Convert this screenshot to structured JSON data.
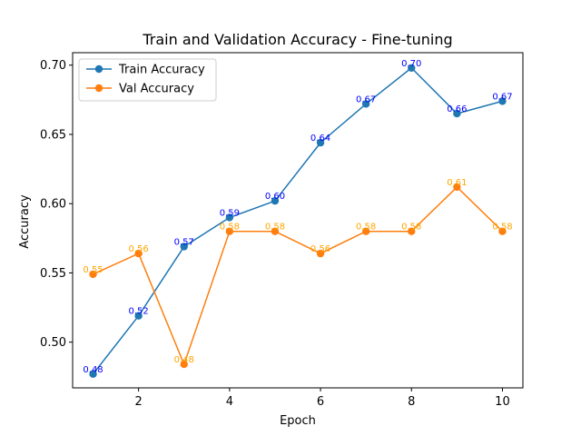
{
  "chart_data": {
    "type": "line",
    "title": "Train and Validation Accuracy - Fine-tuning",
    "xlabel": "Epoch",
    "ylabel": "Accuracy",
    "x": [
      1,
      2,
      3,
      4,
      5,
      6,
      7,
      8,
      9,
      10
    ],
    "xlim": [
      0.55,
      10.45
    ],
    "ylim": [
      0.467,
      0.709
    ],
    "xticks": [
      2,
      4,
      6,
      8,
      10
    ],
    "yticks": [
      0.5,
      0.55,
      0.6,
      0.65,
      0.7
    ],
    "ytick_labels": [
      "0.50",
      "0.55",
      "0.60",
      "0.65",
      "0.70"
    ],
    "grid": false,
    "legend_position": "top-left",
    "series": [
      {
        "name": "Train Accuracy",
        "color": "#1f77b4",
        "label_color": "#0000ff",
        "marker": "circle",
        "values": [
          0.477,
          0.519,
          0.569,
          0.59,
          0.602,
          0.644,
          0.672,
          0.698,
          0.665,
          0.674
        ],
        "labels": [
          "0.48",
          "0.52",
          "0.57",
          "0.59",
          "0.60",
          "0.64",
          "0.67",
          "0.70",
          "0.66",
          "0.67"
        ]
      },
      {
        "name": "Val Accuracy",
        "color": "#ff7f0e",
        "label_color": "#ffa500",
        "marker": "circle",
        "values": [
          0.549,
          0.564,
          0.484,
          0.58,
          0.58,
          0.564,
          0.58,
          0.58,
          0.612,
          0.58
        ],
        "labels": [
          "0.55",
          "0.56",
          "0.48",
          "0.58",
          "0.58",
          "0.56",
          "0.58",
          "0.58",
          "0.61",
          "0.58"
        ]
      }
    ]
  }
}
